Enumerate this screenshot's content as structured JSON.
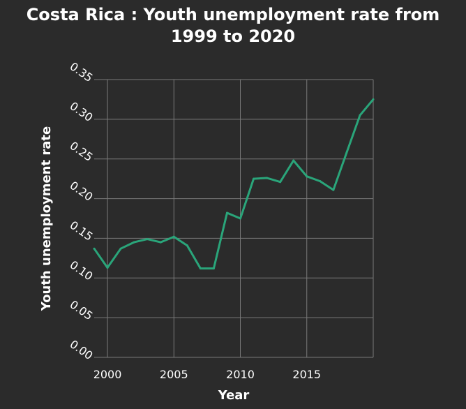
{
  "chart_data": {
    "type": "line",
    "title_lines": [
      "Costa Rica : Youth unemployment rate from",
      "1999 to 2020"
    ],
    "xlabel": "Year",
    "ylabel": "Youth unemployment rate",
    "xlim": [
      1999,
      2020
    ],
    "ylim": [
      0,
      0.35
    ],
    "x_ticks": [
      2000,
      2005,
      2010,
      2015
    ],
    "y_ticks": [
      "0.00",
      "0.05",
      "0.10",
      "0.15",
      "0.20",
      "0.25",
      "0.30",
      "0.35"
    ],
    "grid": true,
    "series": [
      {
        "color": "#2aa57a",
        "x": [
          1999,
          2000,
          2001,
          2002,
          2003,
          2004,
          2005,
          2006,
          2007,
          2008,
          2009,
          2010,
          2011,
          2012,
          2013,
          2014,
          2015,
          2016,
          2017,
          2018,
          2019,
          2020
        ],
        "values": [
          0.137,
          0.113,
          0.137,
          0.145,
          0.149,
          0.145,
          0.152,
          0.141,
          0.112,
          0.112,
          0.182,
          0.175,
          0.225,
          0.226,
          0.221,
          0.248,
          0.228,
          0.222,
          0.211,
          0.258,
          0.305,
          0.325
        ]
      }
    ]
  },
  "colors": {
    "background": "#2b2b2b",
    "plot_background": "#2b2b2b",
    "grid": "#7a7a7a",
    "text": "#ffffff",
    "line": "#2aa57a"
  }
}
